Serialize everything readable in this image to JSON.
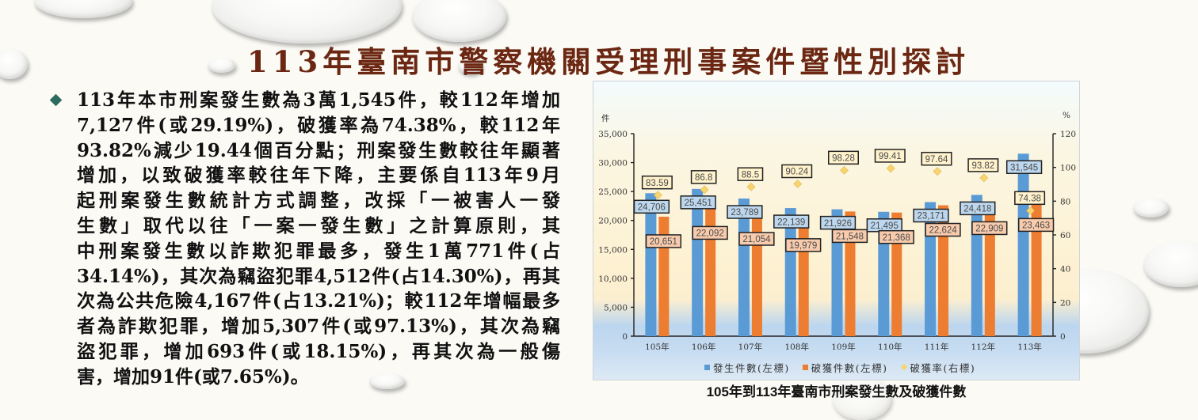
{
  "slide": {
    "title": "113年臺南市警察機關受理刑事案件暨性別探討",
    "bullet": {
      "icon": "diamond-bullet-icon",
      "lines": [
        "113年本市刑案發生數為3萬1,545件，較112年增加",
        "7,127件(或29.19%)，破獲率為74.38%，較112年",
        "93.82%減少19.44個百分點；刑案發生數較往年顯著",
        "增加，以致破獲率較往年下降，主要係自113年9月",
        "起刑案發生數統計方式調整，改採「一被害人一發",
        "生數」取代以往「一案一發生數」之計算原則，其",
        "中刑案發生數以詐欺犯罪最多，發生1萬771件(占",
        "34.14%)，其次為竊盜犯罪4,512件(占14.30%)，再其",
        "次為公共危險4,167件(占13.21%)；較112年增幅最多",
        "者為詐欺犯罪，增加5,307件(或97.13%)，其次為竊",
        "盜犯罪，增加693件(或18.15%)，再其次為一般傷",
        "害，增加91件(或7.65%)。"
      ]
    },
    "chart_caption": "105年到113年臺南市刑案發生數及破獲件數"
  },
  "colors": {
    "title": "#6b2712",
    "bullet": "#2d6b5f",
    "label_border": "#222222",
    "label_text": "#4a4a4a",
    "occurrence_label_bg": "#bdd7ee",
    "cleared_label_bg": "#f8cbad",
    "rate_label_bg": "#fff2cc"
  },
  "chart_data": {
    "type": "bar",
    "title": "105年到113年臺南市刑案發生數及破獲件數",
    "categories": [
      "105年",
      "106年",
      "107年",
      "108年",
      "109年",
      "110年",
      "111年",
      "112年",
      "113年"
    ],
    "series": [
      {
        "name": "發生件數(左標)",
        "type": "bar",
        "axis": "left",
        "color": "#5b9bd5",
        "values": [
          24706,
          25451,
          23789,
          22139,
          21926,
          21495,
          23171,
          24418,
          31545
        ]
      },
      {
        "name": "破獲件數(左標)",
        "type": "bar",
        "axis": "left",
        "color": "#ed7d31",
        "values": [
          20651,
          22092,
          21054,
          19979,
          21548,
          21368,
          22624,
          22909,
          23463
        ]
      },
      {
        "name": "破獲率(右標)",
        "type": "scatter",
        "marker": "diamond",
        "axis": "right",
        "color": "#f7d470",
        "values": [
          83.59,
          86.8,
          88.5,
          90.24,
          98.28,
          99.41,
          97.64,
          93.82,
          74.38
        ]
      }
    ],
    "xlabel": "",
    "ylabel_left": "件",
    "ylabel_right": "%",
    "ylim_left": [
      0,
      35000
    ],
    "yticks_left": [
      "0",
      "5,000",
      "10,000",
      "15,000",
      "20,000",
      "25,000",
      "30,000",
      "35,000"
    ],
    "ylim_right": [
      0,
      120
    ],
    "yticks_right": [
      "0",
      "20",
      "40",
      "60",
      "80",
      "100",
      "120"
    ],
    "data_labels": true,
    "grid": false,
    "legend_position": "bottom"
  }
}
